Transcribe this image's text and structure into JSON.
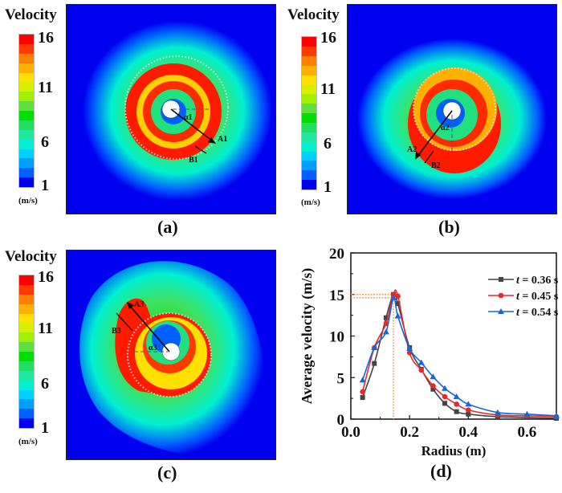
{
  "colorbar": {
    "title": "Velocity",
    "unit": "(m/s)",
    "ticks": [
      "16",
      "11",
      "6",
      "1"
    ],
    "colors": [
      "#ff0000",
      "#ff3a00",
      "#ff8000",
      "#ffb000",
      "#ffe000",
      "#d8f000",
      "#a0f000",
      "#60e040",
      "#00e000",
      "#20e060",
      "#20e8a0",
      "#00f0d0",
      "#00d0ff",
      "#00a0ff",
      "#0060ff",
      "#0000f0"
    ]
  },
  "panels": [
    {
      "label": "(a)",
      "annotations": {
        "arrow": "A1",
        "width": "B1",
        "angle": "α1"
      }
    },
    {
      "label": "(b)",
      "annotations": {
        "arrow": "A2",
        "width": "B2",
        "angle": "α2"
      }
    },
    {
      "label": "(c)",
      "annotations": {
        "arrow": "A3",
        "width": "B3",
        "angle": "α3"
      }
    },
    {
      "label": "(d)"
    }
  ],
  "chart_data": {
    "type": "line",
    "title": "",
    "xlabel": "Radius (m)",
    "ylabel": "Average velocity (m/s)",
    "xlim": [
      0.0,
      0.7
    ],
    "ylim": [
      0,
      20
    ],
    "xticks": [
      "0.0",
      "0.2",
      "0.4",
      "0.6"
    ],
    "yticks": [
      "0",
      "5",
      "10",
      "15",
      "20"
    ],
    "legend_position": "top-right",
    "x": [
      0.04,
      0.08,
      0.12,
      0.145,
      0.16,
      0.2,
      0.24,
      0.28,
      0.32,
      0.36,
      0.4,
      0.5,
      0.6,
      0.7
    ],
    "series": [
      {
        "name": "t = 0.36 s",
        "color": "#444444",
        "marker": "square",
        "values": [
          2.6,
          6.7,
          12.2,
          15.0,
          13.9,
          8.6,
          6.0,
          3.6,
          1.9,
          0.9,
          0.6,
          0.3,
          0.2,
          0.1
        ]
      },
      {
        "name": "t = 0.45 s",
        "color": "#e8282a",
        "marker": "circle",
        "values": [
          3.3,
          8.6,
          11.5,
          15.0,
          14.8,
          8.0,
          5.9,
          4.0,
          2.7,
          1.8,
          1.1,
          0.5,
          0.4,
          0.3
        ]
      },
      {
        "name": "t = 0.54 s",
        "color": "#1a66d6",
        "marker": "triangle",
        "values": [
          4.7,
          8.6,
          10.5,
          14.6,
          12.4,
          8.5,
          6.8,
          5.1,
          3.7,
          2.7,
          1.8,
          0.8,
          0.6,
          0.4
        ]
      }
    ],
    "reference_lines": {
      "x": 0.145,
      "y": [
        15.0,
        14.6
      ],
      "color": "#d9954a",
      "style": "dotted"
    }
  }
}
